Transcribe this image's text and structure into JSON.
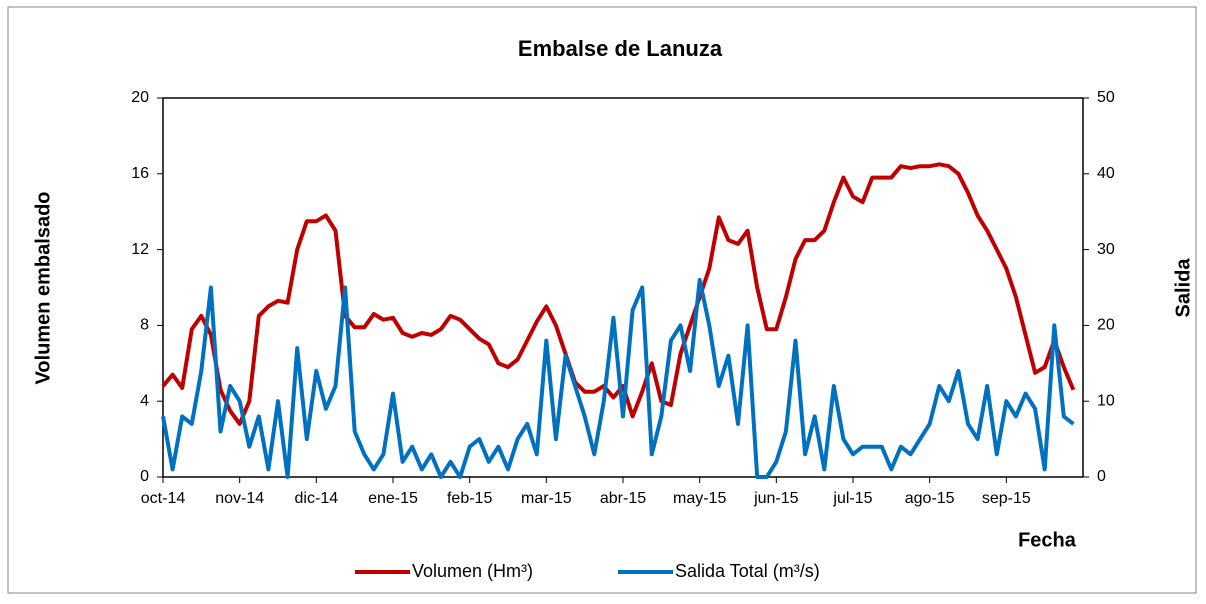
{
  "chart_data": {
    "type": "line",
    "title": "Embalse de Lanuza",
    "x_label": "Fecha",
    "y_label": "Volumen embalsado",
    "y2_label": "Salida",
    "categories": [
      "oct-14",
      null,
      null,
      null,
      null,
      null,
      null,
      null,
      "nov-14",
      null,
      null,
      null,
      null,
      null,
      null,
      null,
      "dic-14",
      null,
      null,
      null,
      null,
      null,
      null,
      null,
      "ene-15",
      null,
      null,
      null,
      null,
      null,
      null,
      null,
      "feb-15",
      null,
      null,
      null,
      null,
      null,
      null,
      null,
      "mar-15",
      null,
      null,
      null,
      null,
      null,
      null,
      null,
      "abr-15",
      null,
      null,
      null,
      null,
      null,
      null,
      null,
      "may-15",
      null,
      null,
      null,
      null,
      null,
      null,
      null,
      "jun-15",
      null,
      null,
      null,
      null,
      null,
      null,
      null,
      "jul-15",
      null,
      null,
      null,
      null,
      null,
      null,
      null,
      "ago-15",
      null,
      null,
      null,
      null,
      null,
      null,
      null,
      "sep-15",
      null,
      null,
      null,
      null,
      null,
      null,
      null
    ],
    "series": [
      {
        "name": "Volumen (Hm³)",
        "color": "#c00000",
        "axis": "y",
        "values": [
          4.8,
          5.4,
          4.7,
          7.8,
          8.5,
          7.5,
          4.6,
          3.5,
          2.8,
          4,
          8.5,
          9,
          9.3,
          9.2,
          12,
          13.5,
          13.5,
          13.8,
          13,
          8.5,
          7.9,
          7.9,
          8.6,
          8.3,
          8.4,
          7.6,
          7.4,
          7.6,
          7.5,
          7.8,
          8.5,
          8.3,
          7.8,
          7.3,
          7,
          6,
          5.8,
          6.2,
          7.2,
          8.2,
          9,
          8,
          6.5,
          5,
          4.5,
          4.5,
          4.8,
          4.2,
          4.8,
          3.2,
          4.5,
          6,
          4,
          3.8,
          6.5,
          8,
          9.5,
          11,
          13.7,
          12.5,
          12.3,
          13,
          10,
          7.8,
          7.8,
          9.5,
          11.5,
          12.5,
          12.5,
          13,
          14.5,
          15.8,
          14.8,
          14.5,
          15.8,
          15.8,
          15.8,
          16.4,
          16.3,
          16.4,
          16.4,
          16.5,
          16.4,
          16,
          15,
          13.8,
          13,
          12,
          11,
          9.5,
          7.5,
          5.5,
          5.8,
          7.2,
          5.8,
          4.6
        ]
      },
      {
        "name": "Salida Total (m³/s)",
        "color": "#0070c0",
        "axis": "y2",
        "values": [
          8,
          1,
          8,
          7,
          14,
          25,
          6,
          12,
          10,
          4,
          8,
          1,
          10,
          0,
          17,
          5,
          14,
          9,
          12,
          25,
          6,
          3,
          1,
          3,
          11,
          2,
          4,
          1,
          3,
          0,
          2,
          0,
          4,
          5,
          2,
          4,
          1,
          5,
          7,
          3,
          18,
          5,
          16,
          12,
          8,
          3,
          10,
          21,
          8,
          22,
          25,
          3,
          8,
          18,
          20,
          14,
          26,
          20,
          12,
          16,
          7,
          20,
          0,
          0,
          2,
          6,
          18,
          3,
          8,
          1,
          12,
          5,
          3,
          4,
          4,
          4,
          1,
          4,
          3,
          5,
          7,
          12,
          10,
          14,
          7,
          5,
          12,
          3,
          10,
          8,
          11,
          9,
          1,
          20,
          8,
          7
        ]
      }
    ],
    "ylim": [
      0,
      20
    ],
    "yticks": [
      0,
      4,
      8,
      12,
      16,
      20
    ],
    "y2lim": [
      0,
      50
    ],
    "y2ticks": [
      0,
      10,
      20,
      30,
      40,
      50
    ],
    "grid": false,
    "legend": "bottom"
  }
}
